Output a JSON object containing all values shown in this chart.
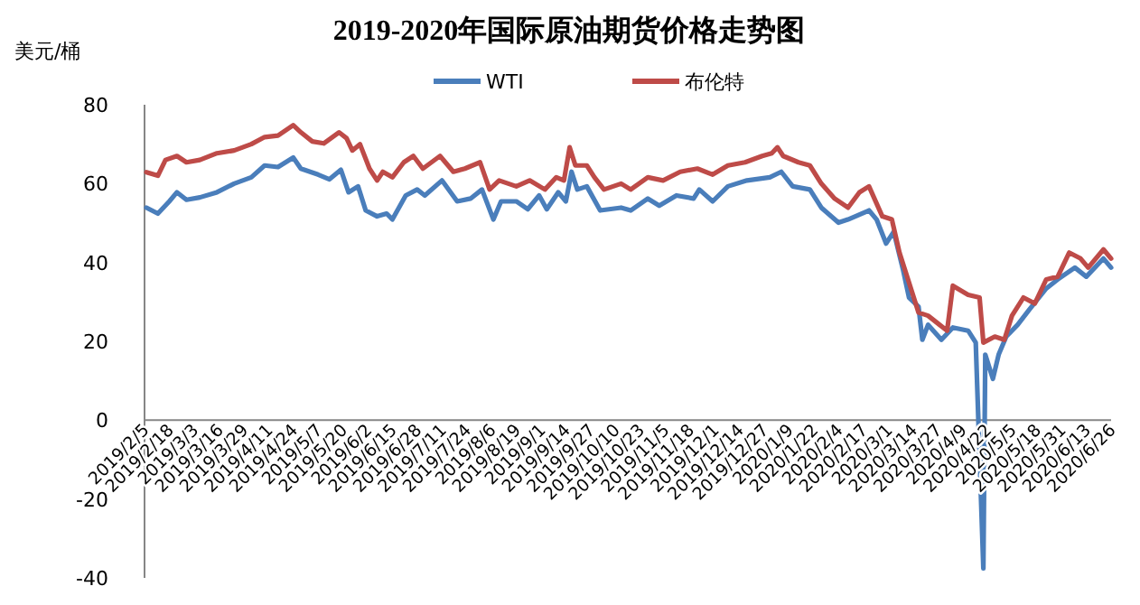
{
  "chart_data": {
    "type": "line",
    "title": "2019-2020年国际原油期货价格走势图",
    "ylabel": "美元/桶",
    "xlim": [
      "2019-02-05",
      "2020-06-26"
    ],
    "xticks": [
      {
        "value": "2019-02-05",
        "label": "2019/2/5"
      },
      {
        "value": "2019-02-18",
        "label": "2019/2/18"
      },
      {
        "value": "2019-03-03",
        "label": "2019/3/3"
      },
      {
        "value": "2019-03-16",
        "label": "2019/3/16"
      },
      {
        "value": "2019-03-29",
        "label": "2019/3/29"
      },
      {
        "value": "2019-04-11",
        "label": "2019/4/11"
      },
      {
        "value": "2019-04-24",
        "label": "2019/4/24"
      },
      {
        "value": "2019-05-07",
        "label": "2019/5/7"
      },
      {
        "value": "2019-05-20",
        "label": "2019/5/20"
      },
      {
        "value": "2019-06-02",
        "label": "2019/6/2"
      },
      {
        "value": "2019-06-15",
        "label": "2019/6/15"
      },
      {
        "value": "2019-06-28",
        "label": "2019/6/28"
      },
      {
        "value": "2019-07-11",
        "label": "2019/7/11"
      },
      {
        "value": "2019-07-24",
        "label": "2019/7/24"
      },
      {
        "value": "2019-08-06",
        "label": "2019/8/6"
      },
      {
        "value": "2019-08-19",
        "label": "2019/8/19"
      },
      {
        "value": "2019-09-01",
        "label": "2019/9/1"
      },
      {
        "value": "2019-09-14",
        "label": "2019/9/14"
      },
      {
        "value": "2019-09-27",
        "label": "2019/9/27"
      },
      {
        "value": "2019-10-10",
        "label": "2019/10/10"
      },
      {
        "value": "2019-10-23",
        "label": "2019/10/23"
      },
      {
        "value": "2019-11-05",
        "label": "2019/11/5"
      },
      {
        "value": "2019-11-18",
        "label": "2019/11/18"
      },
      {
        "value": "2019-12-01",
        "label": "2019/12/1"
      },
      {
        "value": "2019-12-14",
        "label": "2019/12/14"
      },
      {
        "value": "2019-12-27",
        "label": "2019/12/27"
      },
      {
        "value": "2020-01-09",
        "label": "2020/1/9"
      },
      {
        "value": "2020-01-22",
        "label": "2020/1/22"
      },
      {
        "value": "2020-02-04",
        "label": "2020/2/4"
      },
      {
        "value": "2020-02-17",
        "label": "2020/2/17"
      },
      {
        "value": "2020-03-01",
        "label": "2020/3/1"
      },
      {
        "value": "2020-03-14",
        "label": "2020/3/14"
      },
      {
        "value": "2020-03-27",
        "label": "2020/3/27"
      },
      {
        "value": "2020-04-09",
        "label": "2020/4/9"
      },
      {
        "value": "2020-04-22",
        "label": "2020/4/22"
      },
      {
        "value": "2020-05-05",
        "label": "2020/5/5"
      },
      {
        "value": "2020-05-18",
        "label": "2020/5/18"
      },
      {
        "value": "2020-05-31",
        "label": "2020/5/31"
      },
      {
        "value": "2020-06-13",
        "label": "2020/6/13"
      },
      {
        "value": "2020-06-26",
        "label": "2020/6/26"
      }
    ],
    "ylim": [
      -40,
      80
    ],
    "yticks": [
      -40,
      -20,
      0,
      20,
      40,
      60,
      80
    ],
    "grid": false,
    "legend": "top",
    "line_style": "solid",
    "marker": "none",
    "series": [
      {
        "name": "WTI",
        "color": "#4a7ebb",
        "x": [
          "2019-02-06",
          "2019-02-12",
          "2019-02-18",
          "2019-02-22",
          "2019-02-27",
          "2019-03-06",
          "2019-03-15",
          "2019-03-24",
          "2019-04-02",
          "2019-04-09",
          "2019-04-16",
          "2019-04-24",
          "2019-04-28",
          "2019-05-07",
          "2019-05-13",
          "2019-05-19",
          "2019-05-23",
          "2019-05-28",
          "2019-06-01",
          "2019-06-07",
          "2019-06-12",
          "2019-06-15",
          "2019-06-22",
          "2019-06-28",
          "2019-07-02",
          "2019-07-11",
          "2019-07-19",
          "2019-07-26",
          "2019-08-01",
          "2019-08-07",
          "2019-08-11",
          "2019-08-19",
          "2019-08-25",
          "2019-08-31",
          "2019-09-04",
          "2019-09-10",
          "2019-09-14",
          "2019-09-17",
          "2019-09-20",
          "2019-09-25",
          "2019-10-02",
          "2019-10-13",
          "2019-10-18",
          "2019-10-27",
          "2019-11-02",
          "2019-11-11",
          "2019-11-20",
          "2019-11-23",
          "2019-11-30",
          "2019-12-08",
          "2019-12-18",
          "2019-12-30",
          "2020-01-05",
          "2020-01-11",
          "2020-01-20",
          "2020-01-26",
          "2020-02-04",
          "2020-02-09",
          "2020-02-20",
          "2020-02-24",
          "2020-02-29",
          "2020-03-04",
          "2020-03-09",
          "2020-03-12",
          "2020-03-17",
          "2020-03-19",
          "2020-03-22",
          "2020-03-29",
          "2020-04-04",
          "2020-04-12",
          "2020-04-16",
          "2020-04-20",
          "2020-04-21",
          "2020-04-25",
          "2020-04-28",
          "2020-05-02",
          "2020-05-08",
          "2020-05-14",
          "2020-05-23",
          "2020-05-29",
          "2020-06-07",
          "2020-06-13",
          "2020-06-22",
          "2020-06-26"
        ],
        "values": [
          53.9,
          52.4,
          55.5,
          57.8,
          55.9,
          56.5,
          57.8,
          60,
          61.6,
          64.6,
          64.2,
          66.6,
          63.8,
          62.3,
          61.1,
          63.5,
          57.8,
          59.3,
          53.2,
          51.7,
          52.4,
          50.9,
          57,
          58.5,
          57,
          60.8,
          55.5,
          56.2,
          58.5,
          50.9,
          55.5,
          55.5,
          53.5,
          57,
          53.5,
          57.8,
          55.5,
          63,
          58.5,
          59.3,
          53.2,
          53.9,
          53.2,
          56.2,
          54.4,
          57,
          56.2,
          58.5,
          55.5,
          59.3,
          60.8,
          61.6,
          63,
          59.3,
          58.5,
          53.9,
          50.1,
          50.9,
          53.2,
          50.9,
          44.8,
          47.8,
          37.9,
          31.1,
          28.8,
          20.4,
          24.2,
          20.4,
          23.5,
          22.7,
          19.7,
          -37.6,
          16.6,
          10.5,
          16.6,
          21.2,
          24.2,
          28,
          33.4,
          35.7,
          38.7,
          36.4,
          41,
          38.7
        ]
      },
      {
        "name": "布伦特",
        "color": "#be4b48",
        "x": [
          "2019-02-06",
          "2019-02-12",
          "2019-02-16",
          "2019-02-22",
          "2019-02-27",
          "2019-03-06",
          "2019-03-15",
          "2019-03-24",
          "2019-04-02",
          "2019-04-09",
          "2019-04-16",
          "2019-04-24",
          "2019-04-28",
          "2019-05-04",
          "2019-05-10",
          "2019-05-18",
          "2019-05-22",
          "2019-05-25",
          "2019-05-29",
          "2019-06-03",
          "2019-06-07",
          "2019-06-10",
          "2019-06-15",
          "2019-06-21",
          "2019-06-26",
          "2019-07-01",
          "2019-07-10",
          "2019-07-17",
          "2019-07-23",
          "2019-07-31",
          "2019-08-05",
          "2019-08-10",
          "2019-08-19",
          "2019-08-26",
          "2019-09-03",
          "2019-09-09",
          "2019-09-13",
          "2019-09-16",
          "2019-09-19",
          "2019-09-25",
          "2019-09-29",
          "2019-10-04",
          "2019-10-13",
          "2019-10-18",
          "2019-10-27",
          "2019-11-04",
          "2019-11-13",
          "2019-11-22",
          "2019-11-30",
          "2019-12-08",
          "2019-12-17",
          "2019-12-26",
          "2019-12-31",
          "2020-01-03",
          "2020-01-06",
          "2020-01-14",
          "2020-01-20",
          "2020-01-26",
          "2020-02-02",
          "2020-02-09",
          "2020-02-15",
          "2020-02-20",
          "2020-02-27",
          "2020-03-03",
          "2020-03-07",
          "2020-03-13",
          "2020-03-17",
          "2020-03-22",
          "2020-03-28",
          "2020-04-01",
          "2020-04-04",
          "2020-04-12",
          "2020-04-18",
          "2020-04-20",
          "2020-04-26",
          "2020-05-01",
          "2020-05-05",
          "2020-05-11",
          "2020-05-17",
          "2020-05-23",
          "2020-05-29",
          "2020-06-04",
          "2020-06-10",
          "2020-06-14",
          "2020-06-22",
          "2020-06-26"
        ],
        "values": [
          62.9,
          62,
          66,
          67,
          65.4,
          66,
          67.7,
          68.4,
          70,
          71.8,
          72.2,
          74.8,
          73,
          70.7,
          70.2,
          73,
          71.5,
          68.4,
          70,
          63.8,
          60.8,
          63,
          61.6,
          65.4,
          67,
          63.8,
          67,
          63,
          63.8,
          65.4,
          58.5,
          60.8,
          59.3,
          60.8,
          58.5,
          61.6,
          60.8,
          69.2,
          64.6,
          64.6,
          61.6,
          58.5,
          60,
          58.5,
          61.6,
          60.8,
          63,
          63.8,
          62.3,
          64.6,
          65.4,
          67,
          67.7,
          69.2,
          67,
          65.4,
          64.6,
          60,
          56.2,
          53.9,
          57.8,
          59.3,
          51.7,
          50.9,
          42.5,
          33.4,
          27.3,
          26.5,
          24.2,
          22.7,
          34.1,
          31.8,
          31.1,
          19.7,
          21.2,
          20.4,
          26.5,
          31.1,
          29.6,
          35.7,
          36.4,
          42.5,
          41,
          38.7,
          43.3,
          41
        ]
      }
    ]
  }
}
